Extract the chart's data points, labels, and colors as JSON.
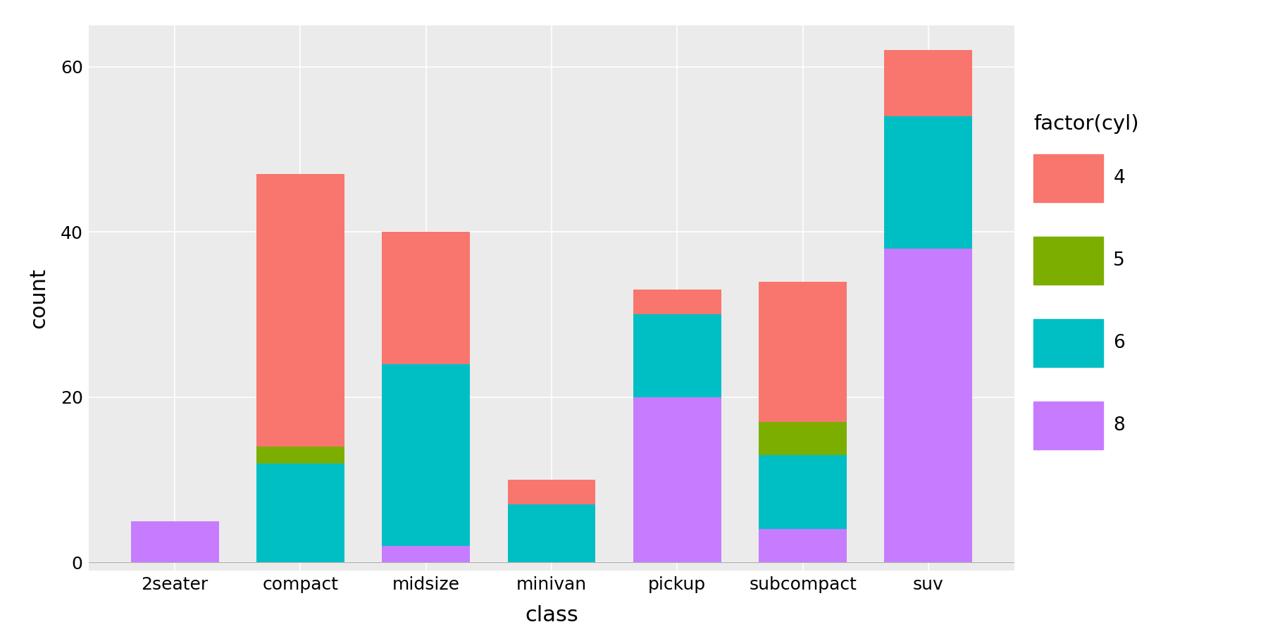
{
  "categories": [
    "2seater",
    "compact",
    "midsize",
    "minivan",
    "pickup",
    "subcompact",
    "suv"
  ],
  "segments": {
    "8": [
      5,
      0,
      2,
      0,
      20,
      4,
      38
    ],
    "6": [
      0,
      12,
      22,
      7,
      10,
      9,
      16
    ],
    "5": [
      0,
      2,
      0,
      0,
      0,
      4,
      0
    ],
    "4": [
      0,
      33,
      16,
      3,
      3,
      17,
      8
    ]
  },
  "colors": {
    "4": "#F8766D",
    "5": "#7CAE00",
    "6": "#00BFC4",
    "8": "#C77CFF"
  },
  "legend_order": [
    "4",
    "5",
    "6",
    "8"
  ],
  "legend_title": "factor(cyl)",
  "xlabel": "class",
  "ylabel": "count",
  "ylim": [
    -1,
    65
  ],
  "yticks": [
    0,
    20,
    40,
    60
  ],
  "background_color": "#EBEBEB",
  "grid_color": "#FFFFFF",
  "axis_label_fontsize": 22,
  "tick_fontsize": 18,
  "legend_fontsize": 19,
  "bar_width": 0.7
}
